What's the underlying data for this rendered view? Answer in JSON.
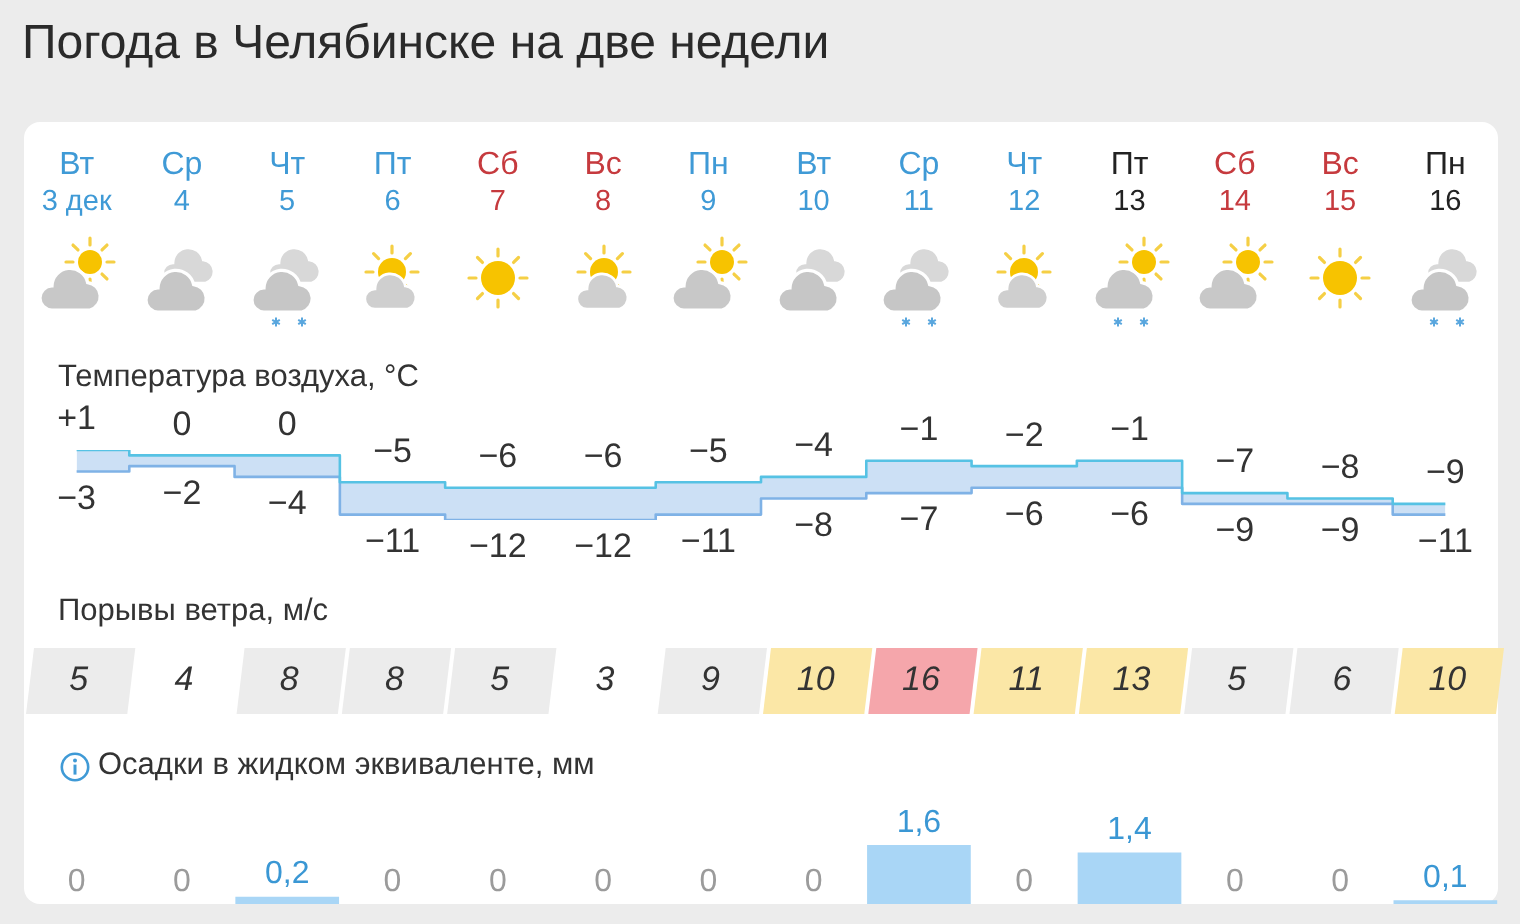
{
  "chart_data": [
    {
      "type": "step",
      "title": "Погода в Челябинске на две недели",
      "ylabel": "Температура воздуха, °C",
      "categories": [
        "Вт\n3 дек",
        "Ср\n4",
        "Чт\n5",
        "Пт\n6",
        "Сб\n7",
        "Вс\n8",
        "Пн\n9",
        "Вт\n10",
        "Ср\n11",
        "Чт\n12",
        "Пт\n13",
        "Сб\n14",
        "Вс\n15",
        "Пн\n16"
      ],
      "series": [
        {
          "color": "#56c2e4",
          "values": [
            1,
            0,
            0,
            -5,
            -6,
            -6,
            -5,
            -4,
            -1,
            -2,
            -1,
            -7,
            -8,
            -9
          ],
          "value_labels": [
            "+1",
            "0",
            "0",
            "−5",
            "−6",
            "−6",
            "−5",
            "−4",
            "−1",
            "−2",
            "−1",
            "−7",
            "−8",
            "−9"
          ]
        },
        {
          "color": "#7fb2e6",
          "values": [
            -3,
            -2,
            -4,
            -11,
            -12,
            -12,
            -11,
            -8,
            -7,
            -6,
            -6,
            -9,
            -9,
            -11
          ],
          "value_labels": [
            "−3",
            "−2",
            "−4",
            "−11",
            "−12",
            "−12",
            "−11",
            "−8",
            "−7",
            "−6",
            "−6",
            "−9",
            "−9",
            "−11"
          ]
        }
      ],
      "tick_labels": "x"
    },
    {
      "type": "heatmap",
      "title": "Порывы ветра, м/с",
      "categories": [
        null,
        null,
        null,
        null,
        null,
        null,
        null,
        null,
        null,
        null,
        null,
        null,
        null,
        null
      ],
      "y_categories": [
        null
      ],
      "cells": [
        [
          5,
          4,
          8,
          8,
          5,
          3,
          9,
          10,
          16,
          11,
          13,
          5,
          6,
          10
        ]
      ],
      "colors": [
        [
          "#ececec",
          "#ffffff",
          "#ececec",
          "#ececec",
          "#ececec",
          "#ffffff",
          "#ececec",
          "#fbe7a6",
          "#f5a6ab",
          "#fbe7a6",
          "#fbe7a6",
          "#ececec",
          "#ececec",
          "#fbe7a6"
        ]
      ],
      "data_labels": true,
      "tick_labels": false
    },
    {
      "type": "bar",
      "title": "Осадки в жидком эквиваленте, мм",
      "categories": [
        null,
        null,
        null,
        null,
        null,
        null,
        null,
        null,
        null,
        null,
        null,
        null,
        null,
        null
      ],
      "values": [
        0,
        0,
        0.2,
        0,
        0,
        0,
        0,
        0,
        1.6,
        0,
        1.4,
        0,
        0,
        0.1
      ],
      "value_labels": [
        "0",
        "0",
        "0,2",
        "0",
        "0",
        "0",
        "0",
        "0",
        "1,6",
        "0",
        "1,4",
        "0",
        "0",
        "0,1"
      ],
      "color": "#a9d6f6",
      "tick_labels": false
    }
  ]
}
